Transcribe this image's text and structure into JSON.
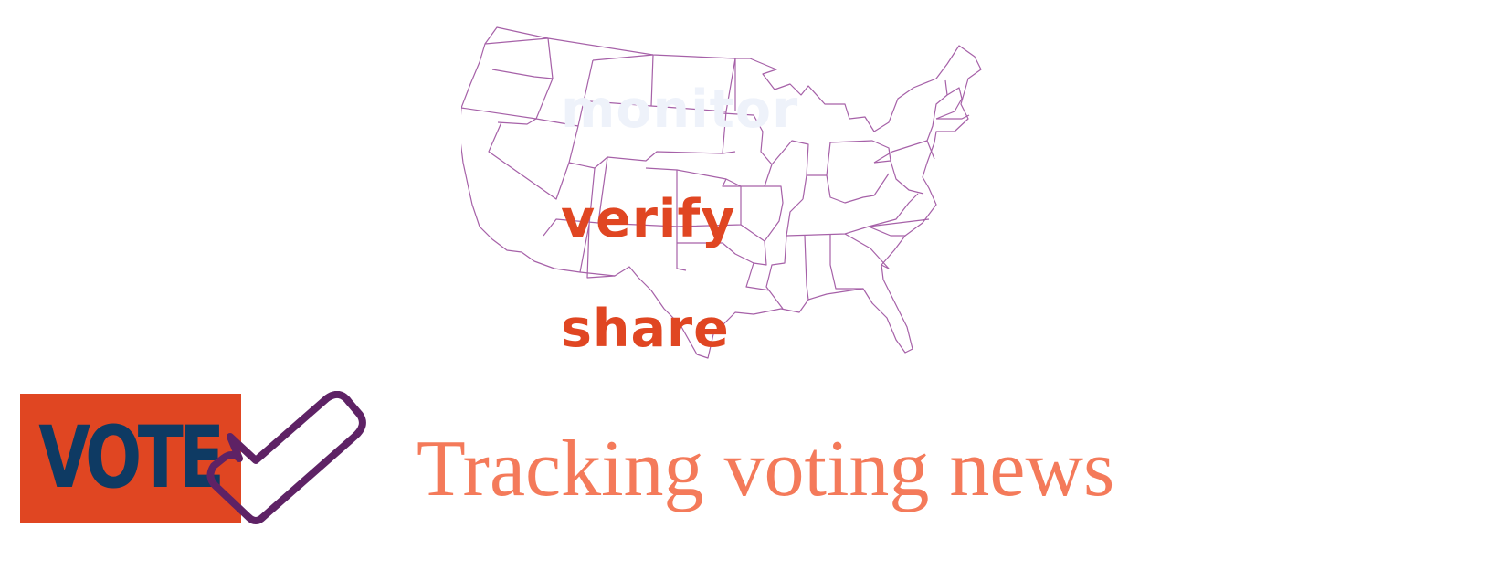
{
  "colors": {
    "map_stroke": "#a661a8",
    "accent": "#e04622",
    "vote_text": "#0e3a63",
    "check": "#5e2265",
    "tagline": "#f47a5a",
    "faded_word": "#eef2fa"
  },
  "map": {
    "icon": "us-states-outline-map"
  },
  "words": {
    "monitor": "monitor",
    "verify": "verify",
    "share": "share"
  },
  "logo": {
    "text": "VOTE",
    "icon": "checkmark-icon"
  },
  "tagline": "Tracking voting news"
}
